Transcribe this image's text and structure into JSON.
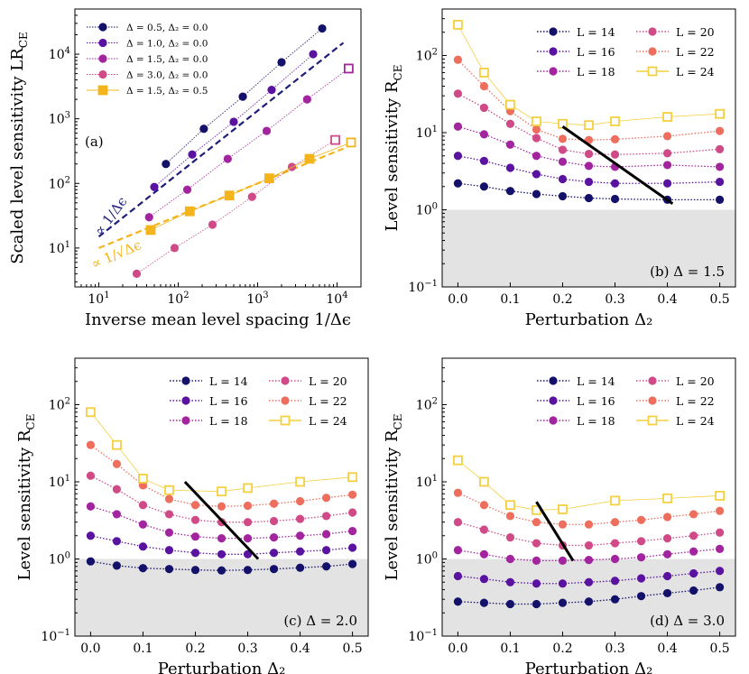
{
  "colors": {
    "L14": "#14116b",
    "L16": "#5a12a0",
    "L18": "#a2249e",
    "L20": "#cf4a86",
    "L22": "#ee6e5e",
    "L24": "#f4d03f",
    "d05": "#14116b",
    "d10": "#5a12a0",
    "d15": "#a2249e",
    "d30": "#cf4a86",
    "d15b": "#f4b51c",
    "fit_dark": "#1e1e7a",
    "fit_orange": "#f4b51c",
    "shade": "#e3e3e3"
  },
  "chart_data": [
    {
      "id": "a",
      "type": "scatter",
      "panel_label": "(a)",
      "xlabel": "Inverse mean level spacing 1/Δϵ",
      "ylabel": "Scaled level sensitivity LR",
      "ylabel_sub": "CE",
      "xscale": "log",
      "yscale": "log",
      "xlim": [
        5,
        20000
      ],
      "ylim": [
        2.5,
        50000
      ],
      "x_ticks": [
        {
          "value": 10,
          "label": "10",
          "exp": "1"
        },
        {
          "value": 100,
          "label": "10",
          "exp": "2"
        },
        {
          "value": 1000,
          "label": "10",
          "exp": "3"
        },
        {
          "value": 10000,
          "label": "10",
          "exp": "4"
        }
      ],
      "y_ticks": [
        {
          "value": 10,
          "label": "10",
          "exp": "1"
        },
        {
          "value": 100,
          "label": "10",
          "exp": "2"
        },
        {
          "value": 1000,
          "label": "10",
          "exp": "3"
        },
        {
          "value": 10000,
          "label": "10",
          "exp": "4"
        }
      ],
      "series": [
        {
          "name": "Δ = 0.5, Δ₂ = 0.0",
          "color_key": "d05",
          "marker": "circle",
          "x": [
            70,
            210,
            650,
            2000,
            6500
          ],
          "y": [
            200,
            700,
            2200,
            7500,
            25000
          ]
        },
        {
          "name": "Δ = 1.0, Δ₂ = 0.0",
          "color_key": "d10",
          "marker": "circle",
          "x": [
            50,
            150,
            500,
            1500,
            5000
          ],
          "y": [
            88,
            280,
            900,
            2800,
            10000
          ]
        },
        {
          "name": "Δ = 1.5, Δ₂ = 0.0",
          "color_key": "d15",
          "marker": "circle",
          "x": [
            43,
            130,
            420,
            1300,
            4200,
            14000
          ],
          "y": [
            30,
            80,
            240,
            650,
            2000,
            6000
          ],
          "open_last": true
        },
        {
          "name": "Δ = 3.0, Δ₂ = 0.0",
          "color_key": "d30",
          "marker": "circle",
          "x": [
            30,
            90,
            270,
            850,
            2700,
            9500
          ],
          "y": [
            4,
            10,
            23,
            62,
            180,
            470
          ],
          "open_last": true
        },
        {
          "name": "Δ = 1.5, Δ₂ = 0.5",
          "color_key": "d15b",
          "marker": "square",
          "x": [
            45,
            140,
            440,
            1400,
            4500,
            15000
          ],
          "y": [
            19,
            37,
            65,
            120,
            240,
            430
          ],
          "open_last": true
        }
      ],
      "fit_lines": [
        {
          "label": "∝ 1/Δϵ",
          "color_key": "fit_dark",
          "x": [
            10,
            12000
          ],
          "y": [
            15,
            15000
          ]
        },
        {
          "label": "∝ 1/√Δϵ",
          "color_key": "fit_orange",
          "x": [
            10,
            12000
          ],
          "y": [
            10,
            346
          ]
        }
      ]
    },
    {
      "id": "b",
      "type": "line",
      "panel_label": "(b)  Δ = 1.5",
      "xlabel": "Perturbation Δ₂",
      "ylabel": "Level sensitivity R",
      "ylabel_sub": "CE",
      "x": [
        0,
        0.05,
        0.1,
        0.15,
        0.2,
        0.25,
        0.3,
        0.4,
        0.5
      ],
      "xlim": [
        -0.03,
        0.53
      ],
      "ylim": [
        0.1,
        400
      ],
      "series": [
        {
          "name": "L = 14",
          "color_key": "L14",
          "values": [
            2.2,
            2.0,
            1.75,
            1.6,
            1.5,
            1.42,
            1.38,
            1.35,
            1.35
          ]
        },
        {
          "name": "L = 16",
          "color_key": "L16",
          "values": [
            5.0,
            4.3,
            3.5,
            2.9,
            2.5,
            2.3,
            2.2,
            2.2,
            2.3
          ]
        },
        {
          "name": "L = 18",
          "color_key": "L18",
          "values": [
            12,
            9.5,
            7.0,
            5.0,
            4.2,
            3.7,
            3.6,
            3.8,
            3.6
          ]
        },
        {
          "name": "L = 20",
          "color_key": "L20",
          "values": [
            32,
            21,
            13,
            8.5,
            6.0,
            5.3,
            5.2,
            5.4,
            6.1
          ]
        },
        {
          "name": "L = 22",
          "color_key": "L22",
          "values": [
            88,
            40,
            19,
            11,
            8.3,
            8.0,
            8.2,
            9.0,
            10.5
          ]
        },
        {
          "name": "L = 24",
          "color_key": "L24",
          "values": [
            250,
            60,
            23,
            14,
            13,
            12.5,
            14,
            16,
            17.5
          ],
          "open": true
        }
      ],
      "bold_line": {
        "x": [
          0.2,
          0.41
        ],
        "y": [
          12,
          1.2
        ]
      },
      "shade_below": 1,
      "x_ticks": [
        "0.0",
        "0.1",
        "0.2",
        "0.3",
        "0.4",
        "0.5"
      ],
      "y_ticks": [
        {
          "value": 0.1,
          "label": "10",
          "exp": "−1"
        },
        {
          "value": 1,
          "label": "10",
          "exp": "0"
        },
        {
          "value": 10,
          "label": "10",
          "exp": "1"
        },
        {
          "value": 100,
          "label": "10",
          "exp": "2"
        }
      ]
    },
    {
      "id": "c",
      "type": "line",
      "panel_label": "(c)  Δ = 2.0",
      "xlabel": "Perturbation Δ₂",
      "ylabel": "Level sensitivity R",
      "ylabel_sub": "CE",
      "x": [
        0,
        0.05,
        0.1,
        0.15,
        0.2,
        0.25,
        0.3,
        0.35,
        0.4,
        0.45,
        0.5
      ],
      "xlim": [
        -0.03,
        0.53
      ],
      "ylim": [
        0.1,
        400
      ],
      "series": [
        {
          "name": "L = 14",
          "color_key": "L14",
          "values": [
            0.93,
            0.82,
            0.76,
            0.74,
            0.72,
            0.71,
            0.72,
            0.74,
            0.77,
            0.8,
            0.86
          ]
        },
        {
          "name": "L = 16",
          "color_key": "L16",
          "values": [
            2.0,
            1.7,
            1.45,
            1.3,
            1.2,
            1.15,
            1.15,
            1.2,
            1.25,
            1.3,
            1.4
          ]
        },
        {
          "name": "L = 18",
          "color_key": "L18",
          "values": [
            4.8,
            3.8,
            2.8,
            2.2,
            1.95,
            1.85,
            1.85,
            1.9,
            2.0,
            2.1,
            2.3
          ]
        },
        {
          "name": "L = 20",
          "color_key": "L20",
          "values": [
            12,
            8.0,
            5.0,
            3.8,
            3.2,
            3.0,
            3.0,
            3.1,
            3.3,
            3.6,
            4.0
          ]
        },
        {
          "name": "L = 22",
          "color_key": "L22",
          "values": [
            30,
            17,
            9.0,
            6.0,
            5.0,
            4.8,
            4.9,
            5.2,
            5.6,
            6.2,
            6.8
          ]
        },
        {
          "name": "L = 24",
          "color_key": "L24",
          "values": [
            80,
            30,
            11,
            7.8,
            null,
            7.5,
            8.3,
            null,
            10,
            null,
            11.5
          ],
          "open": true
        }
      ],
      "bold_line": {
        "x": [
          0.18,
          0.32
        ],
        "y": [
          10,
          1.0
        ]
      },
      "shade_below": 1,
      "x_ticks": [
        "0.0",
        "0.1",
        "0.2",
        "0.3",
        "0.4",
        "0.5"
      ],
      "y_ticks": [
        {
          "value": 0.1,
          "label": "10",
          "exp": "−1"
        },
        {
          "value": 1,
          "label": "10",
          "exp": "0"
        },
        {
          "value": 10,
          "label": "10",
          "exp": "1"
        },
        {
          "value": 100,
          "label": "10",
          "exp": "2"
        }
      ]
    },
    {
      "id": "d",
      "type": "line",
      "panel_label": "(d)  Δ = 3.0",
      "xlabel": "Perturbation Δ₂",
      "ylabel": "Level sensitivity R",
      "ylabel_sub": "CE",
      "x": [
        0,
        0.05,
        0.1,
        0.15,
        0.2,
        0.25,
        0.3,
        0.35,
        0.4,
        0.45,
        0.5
      ],
      "xlim": [
        -0.03,
        0.53
      ],
      "ylim": [
        0.1,
        400
      ],
      "series": [
        {
          "name": "L = 14",
          "color_key": "L14",
          "values": [
            0.28,
            0.27,
            0.26,
            0.26,
            0.27,
            0.28,
            0.3,
            0.33,
            0.36,
            0.39,
            0.43
          ]
        },
        {
          "name": "L = 16",
          "color_key": "L16",
          "values": [
            0.6,
            0.55,
            0.5,
            0.48,
            0.48,
            0.5,
            0.52,
            0.56,
            0.6,
            0.65,
            0.7
          ]
        },
        {
          "name": "L = 18",
          "color_key": "L18",
          "values": [
            1.3,
            1.15,
            1.0,
            0.95,
            0.95,
            0.97,
            1.0,
            1.05,
            1.15,
            1.25,
            1.35
          ]
        },
        {
          "name": "L = 20",
          "color_key": "L20",
          "values": [
            3.0,
            2.4,
            1.9,
            1.6,
            1.5,
            1.5,
            1.6,
            1.7,
            1.85,
            2.0,
            2.2
          ]
        },
        {
          "name": "L = 22",
          "color_key": "L22",
          "values": [
            7.2,
            5.0,
            3.6,
            3.0,
            2.8,
            2.8,
            3.0,
            3.2,
            3.5,
            3.8,
            4.2
          ]
        },
        {
          "name": "L = 24",
          "color_key": "L24",
          "values": [
            19,
            10,
            5.0,
            4.3,
            4.4,
            null,
            5.7,
            null,
            6.1,
            null,
            6.6
          ],
          "open": true
        }
      ],
      "bold_line": {
        "x": [
          0.15,
          0.22
        ],
        "y": [
          5.5,
          0.95
        ]
      },
      "shade_below": 1,
      "x_ticks": [
        "0.0",
        "0.1",
        "0.2",
        "0.3",
        "0.4",
        "0.5"
      ],
      "y_ticks": [
        {
          "value": 0.1,
          "label": "10",
          "exp": "−1"
        },
        {
          "value": 1,
          "label": "10",
          "exp": "0"
        },
        {
          "value": 10,
          "label": "10",
          "exp": "1"
        },
        {
          "value": 100,
          "label": "10",
          "exp": "2"
        }
      ]
    }
  ]
}
